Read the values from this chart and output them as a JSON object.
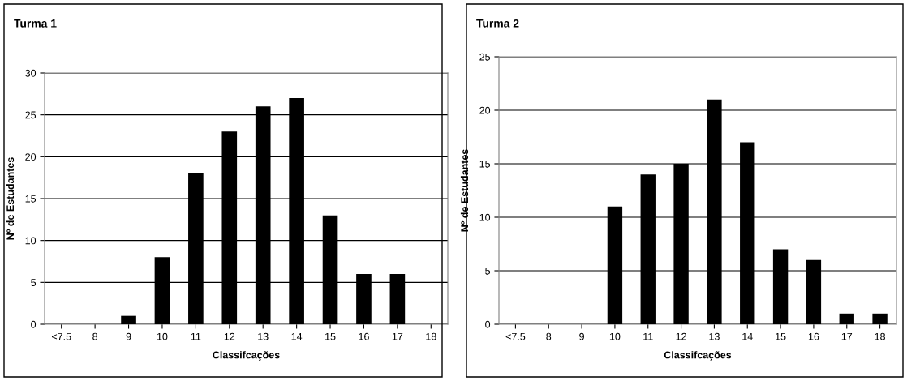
{
  "chart_data": [
    {
      "type": "bar",
      "title": "Turma 1",
      "xlabel": "Classifcações",
      "ylabel": "Nº de Estudantes",
      "categories": [
        "<7.5",
        "8",
        "9",
        "10",
        "11",
        "12",
        "13",
        "14",
        "15",
        "16",
        "17",
        "18"
      ],
      "values": [
        0,
        0,
        1,
        8,
        18,
        23,
        26,
        27,
        13,
        6,
        6,
        0
      ],
      "color": "#000000",
      "ylim": [
        0,
        30
      ],
      "yticks": [
        0,
        5,
        10,
        15,
        20,
        25,
        30
      ],
      "grid": "y",
      "legend": false
    },
    {
      "type": "bar",
      "title": "Turma 2",
      "xlabel": "Classifcações",
      "ylabel": "Nº de Estudantes",
      "categories": [
        "<7.5",
        "8",
        "9",
        "10",
        "11",
        "12",
        "13",
        "14",
        "15",
        "16",
        "17",
        "18"
      ],
      "values": [
        0,
        0,
        0,
        11,
        14,
        15,
        21,
        17,
        7,
        6,
        1,
        1
      ],
      "color": "#000000",
      "ylim": [
        0,
        25
      ],
      "yticks": [
        0,
        5,
        10,
        15,
        20,
        25
      ],
      "grid": "y",
      "legend": false
    }
  ]
}
